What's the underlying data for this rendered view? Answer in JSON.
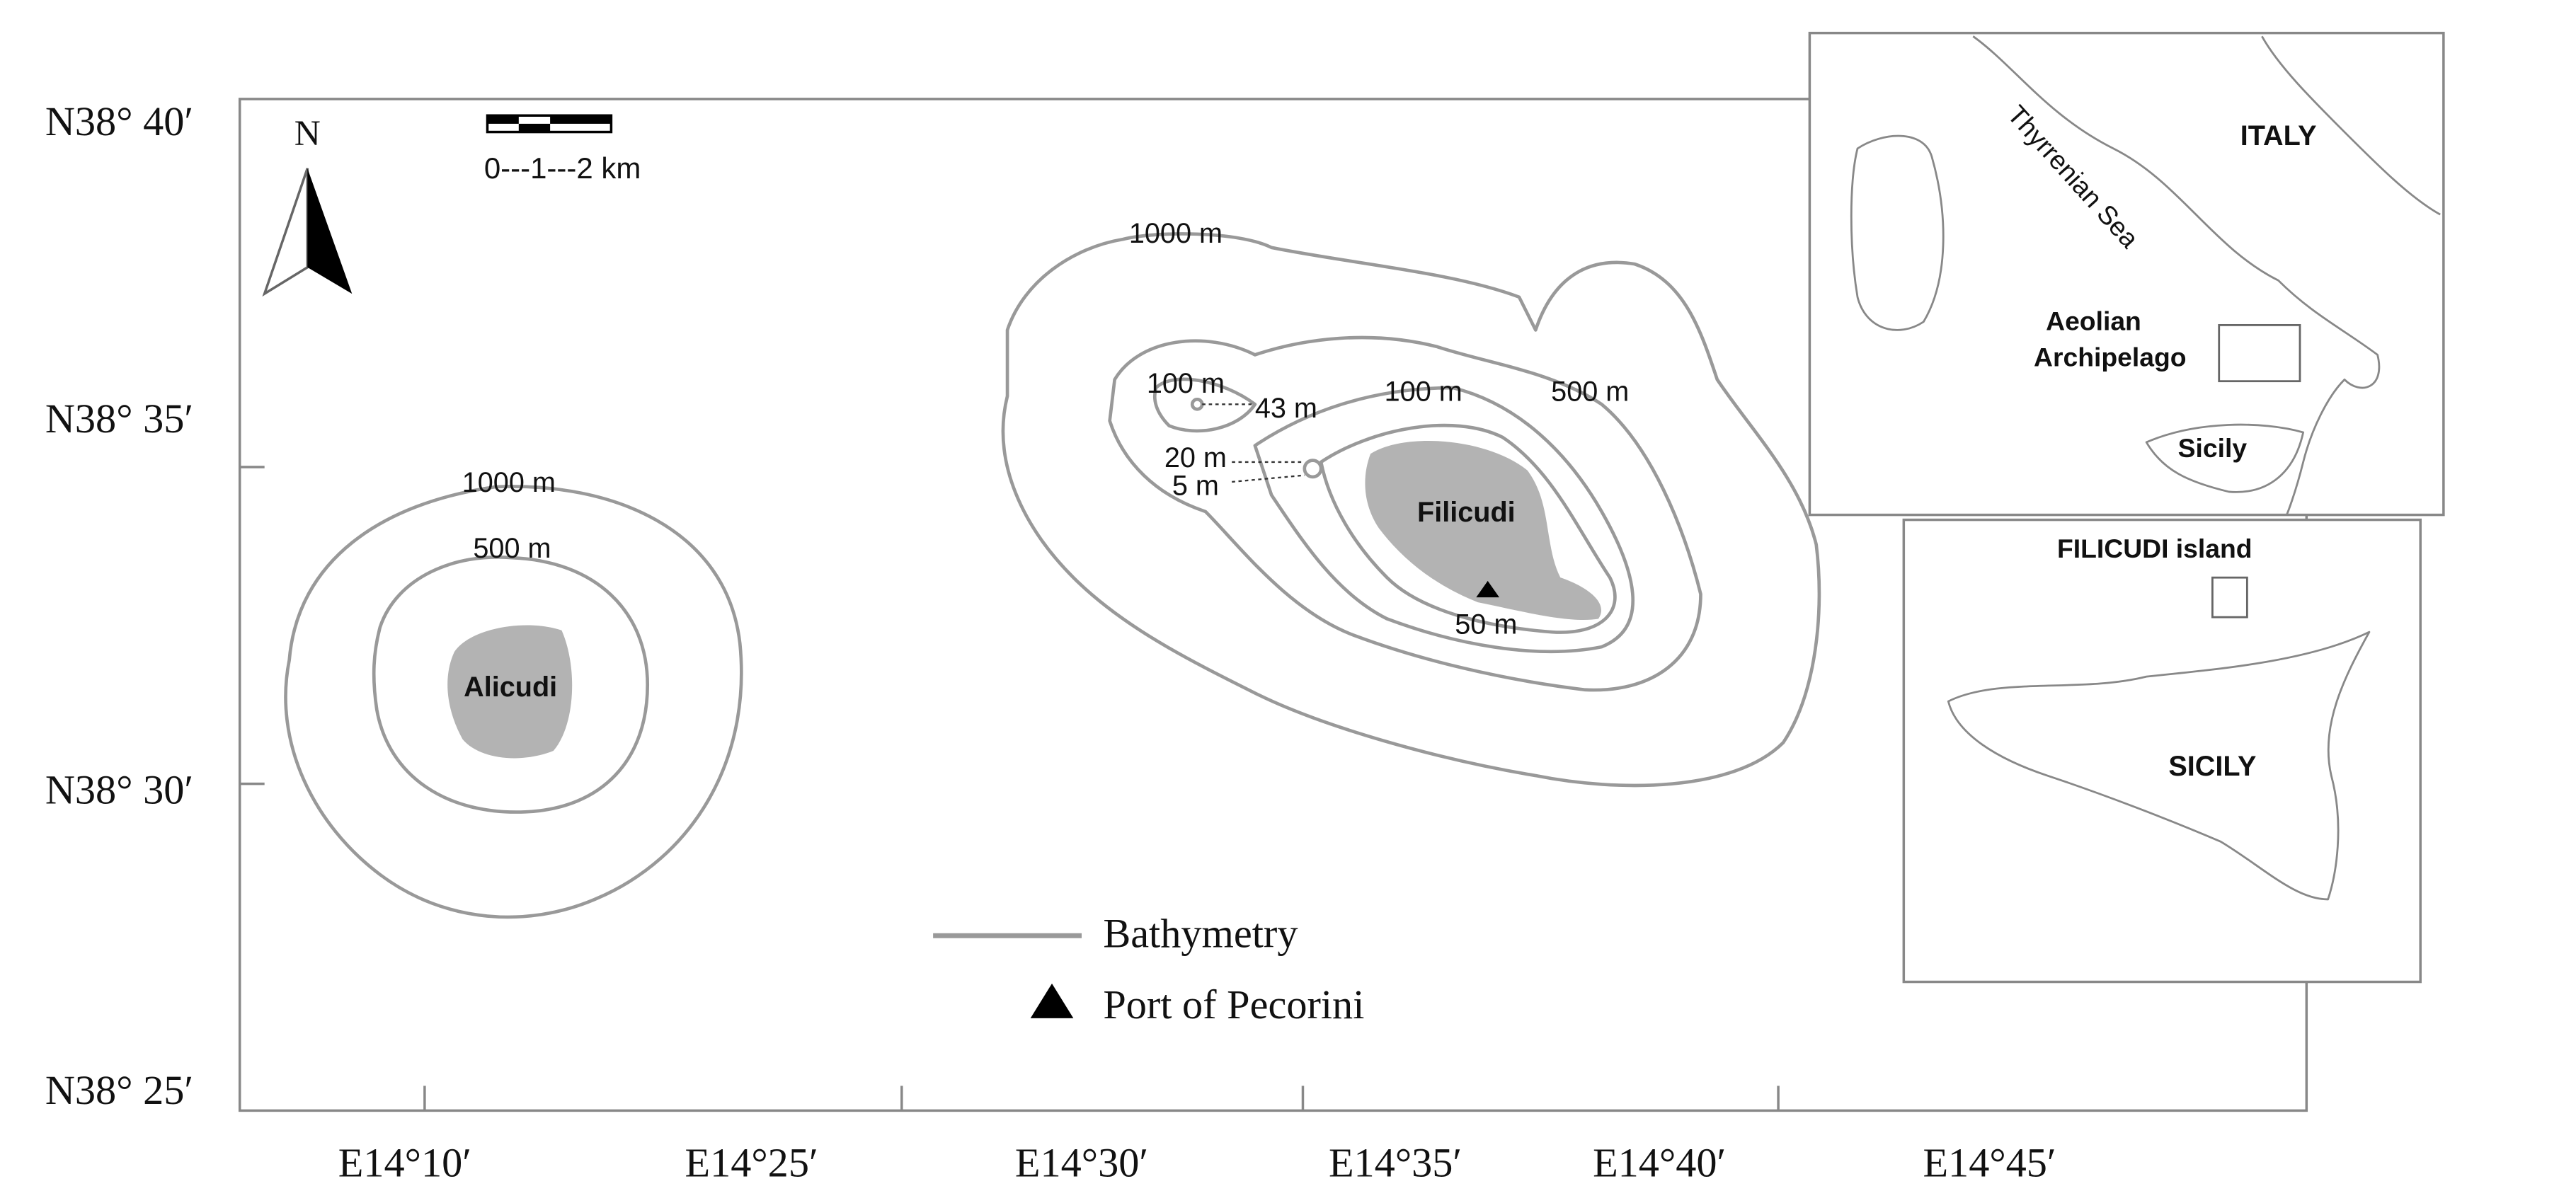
{
  "axes": {
    "lat_labels": [
      "N38° 40′",
      "N38° 35′",
      "N38° 30′",
      "N38° 25′"
    ],
    "lon_labels": [
      "E14°10′",
      "E14°25′",
      "E14°30′",
      "E14°35′",
      "E14°40′",
      "E14°45′"
    ]
  },
  "north": "N",
  "scale": "0---1---2 km",
  "alicudi": {
    "name": "Alicudi",
    "contours": [
      "1000 m",
      "500 m"
    ]
  },
  "filicudi": {
    "name": "Filicudi",
    "contours": [
      "1000 m",
      "500 m",
      "100 m",
      "100 m",
      "43 m",
      "20 m",
      "5 m",
      "50 m"
    ]
  },
  "legend": {
    "bathymetry": "Bathymetry",
    "port": "Port of Pecorini"
  },
  "inset_italy": {
    "labels": [
      "ITALY",
      "Thyrrenian Sea",
      "Aeolian",
      "Archipelago",
      "Sicily"
    ]
  },
  "inset_sicily": {
    "labels": [
      "FILICUDI island",
      "SICILY"
    ]
  }
}
